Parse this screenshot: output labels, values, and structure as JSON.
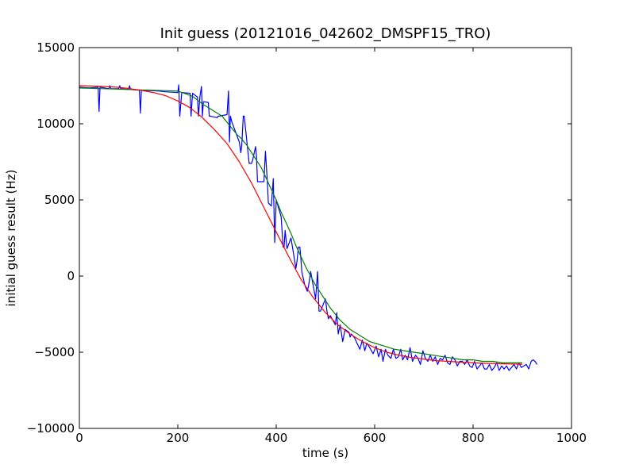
{
  "chart_data": {
    "type": "line",
    "title": "Init guess (20121016_042602_DMSPF15_TRO)",
    "xlabel": "time (s)",
    "ylabel": "initial guess result (Hz)",
    "xlim": [
      0,
      1000
    ],
    "ylim": [
      -10000,
      15000
    ],
    "xticks": [
      0,
      200,
      400,
      600,
      800,
      1000
    ],
    "yticks": [
      -10000,
      -5000,
      0,
      5000,
      10000,
      15000
    ],
    "xtick_labels": [
      "0",
      "200",
      "400",
      "600",
      "800",
      "1000"
    ],
    "ytick_labels": [
      "−10000",
      "−5000",
      "0",
      "5000",
      "10000",
      "15000"
    ],
    "grid": false,
    "legend": null,
    "series": [
      {
        "color": "#0000ff",
        "x": [
          0,
          20,
          38,
          40,
          42,
          60,
          62,
          64,
          80,
          82,
          84,
          100,
          102,
          104,
          122,
          124,
          126,
          160,
          175,
          200,
          202,
          204,
          208,
          225,
          227,
          230,
          240,
          242,
          245,
          248,
          250,
          252,
          262,
          264,
          266,
          280,
          282,
          284,
          300,
          303,
          305,
          307,
          310,
          325,
          328,
          330,
          333,
          335,
          345,
          350,
          352,
          358,
          360,
          362,
          365,
          375,
          378,
          382,
          384,
          390,
          394,
          397,
          400,
          410,
          414,
          416,
          418,
          422,
          430,
          440,
          442,
          445,
          448,
          450,
          452,
          458,
          463,
          466,
          470,
          480,
          484,
          487,
          490,
          500,
          503,
          506,
          510,
          520,
          523,
          526,
          530,
          535,
          540,
          548,
          550,
          553,
          560,
          564,
          570,
          575,
          580,
          584,
          590,
          597,
          603,
          608,
          613,
          617,
          622,
          627,
          633,
          638,
          643,
          648,
          653,
          657,
          662,
          667,
          672,
          677,
          683,
          688,
          693,
          698,
          703,
          708,
          713,
          718,
          723,
          728,
          733,
          738,
          743,
          748,
          753,
          758,
          763,
          768,
          773,
          778,
          783,
          788,
          793,
          798,
          803,
          808,
          813,
          818,
          823,
          828,
          833,
          838,
          843,
          848,
          853,
          858,
          863,
          868,
          873,
          878,
          883,
          888,
          893,
          898,
          903,
          908,
          913,
          918,
          922,
          926,
          930
        ],
        "y": [
          12400,
          12350,
          12400,
          10800,
          12400,
          12300,
          12500,
          12300,
          12300,
          12500,
          12300,
          12250,
          12500,
          12250,
          12200,
          10700,
          12200,
          12150,
          12100,
          12050,
          12550,
          10500,
          12050,
          12000,
          10500,
          12000,
          11750,
          10500,
          11800,
          12450,
          10500,
          11450,
          11400,
          10500,
          10500,
          10400,
          10500,
          10500,
          10600,
          12150,
          8800,
          10500,
          10100,
          8800,
          8100,
          8600,
          10500,
          10500,
          7400,
          7400,
          7600,
          8500,
          7800,
          6200,
          6200,
          6200,
          8200,
          6200,
          4800,
          4600,
          6400,
          2200,
          5000,
          3900,
          1900,
          1900,
          3000,
          1800,
          2500,
          500,
          900,
          1900,
          1900,
          1200,
          300,
          -600,
          -1000,
          -600,
          300,
          -1500,
          300,
          -2300,
          -2300,
          -1500,
          -2300,
          -2800,
          -2600,
          -3200,
          -2400,
          -3800,
          -3200,
          -4300,
          -3500,
          -3700,
          -4000,
          -3800,
          -4100,
          -4400,
          -4800,
          -4200,
          -4900,
          -4400,
          -4700,
          -5100,
          -4600,
          -5300,
          -4800,
          -5600,
          -4800,
          -5200,
          -5400,
          -4800,
          -5400,
          -5300,
          -4800,
          -5500,
          -5200,
          -5500,
          -4700,
          -5600,
          -5200,
          -5400,
          -5800,
          -4900,
          -5400,
          -5600,
          -5200,
          -5600,
          -5300,
          -5800,
          -5400,
          -5500,
          -5200,
          -5700,
          -5800,
          -5300,
          -5500,
          -5900,
          -5600,
          -5600,
          -5800,
          -5500,
          -5900,
          -6000,
          -5600,
          -6100,
          -5900,
          -5700,
          -6100,
          -6100,
          -5800,
          -6200,
          -6000,
          -5700,
          -6200,
          -5900,
          -6100,
          -5900,
          -6200,
          -6000,
          -5800,
          -6100,
          -5700,
          -6000,
          -5900,
          -5800,
          -6100,
          -5600,
          -5500,
          -5600,
          -5800
        ]
      },
      {
        "color": "#008000",
        "x": [
          0,
          50,
          100,
          150,
          200,
          230,
          250,
          270,
          290,
          300,
          310,
          320,
          330,
          340,
          350,
          360,
          370,
          380,
          390,
          400,
          410,
          420,
          430,
          440,
          450,
          460,
          470,
          480,
          490,
          500,
          510,
          520,
          530,
          540,
          550,
          560,
          570,
          580,
          590,
          600,
          620,
          640,
          660,
          680,
          700,
          720,
          740,
          760,
          780,
          800,
          820,
          840,
          860,
          880,
          900
        ],
        "y": [
          12350,
          12300,
          12250,
          12200,
          12150,
          11800,
          11300,
          10900,
          10500,
          10100,
          9700,
          9300,
          9000,
          8600,
          8100,
          7600,
          7100,
          6400,
          5700,
          5000,
          4200,
          3500,
          2800,
          2000,
          1300,
          600,
          0,
          -600,
          -1100,
          -1600,
          -2100,
          -2500,
          -2900,
          -3200,
          -3500,
          -3700,
          -3900,
          -4100,
          -4300,
          -4400,
          -4600,
          -4800,
          -4900,
          -5000,
          -5100,
          -5200,
          -5300,
          -5400,
          -5500,
          -5500,
          -5600,
          -5600,
          -5700,
          -5700,
          -5700
        ]
      },
      {
        "color": "#ff0000",
        "x": [
          0,
          25,
          50,
          75,
          100,
          125,
          150,
          175,
          200,
          225,
          250,
          275,
          300,
          325,
          350,
          375,
          400,
          425,
          450,
          475,
          500,
          525,
          550,
          575,
          600,
          625,
          650,
          675,
          700,
          725,
          750,
          775,
          800,
          825,
          850,
          875,
          900
        ],
        "y": [
          12500,
          12480,
          12450,
          12400,
          12320,
          12200,
          12050,
          11850,
          11500,
          11050,
          10400,
          9600,
          8700,
          7500,
          6100,
          4500,
          2900,
          1300,
          -200,
          -1400,
          -2400,
          -3200,
          -3800,
          -4300,
          -4700,
          -5000,
          -5200,
          -5350,
          -5450,
          -5550,
          -5600,
          -5650,
          -5700,
          -5730,
          -5750,
          -5770,
          -5780
        ]
      }
    ]
  }
}
